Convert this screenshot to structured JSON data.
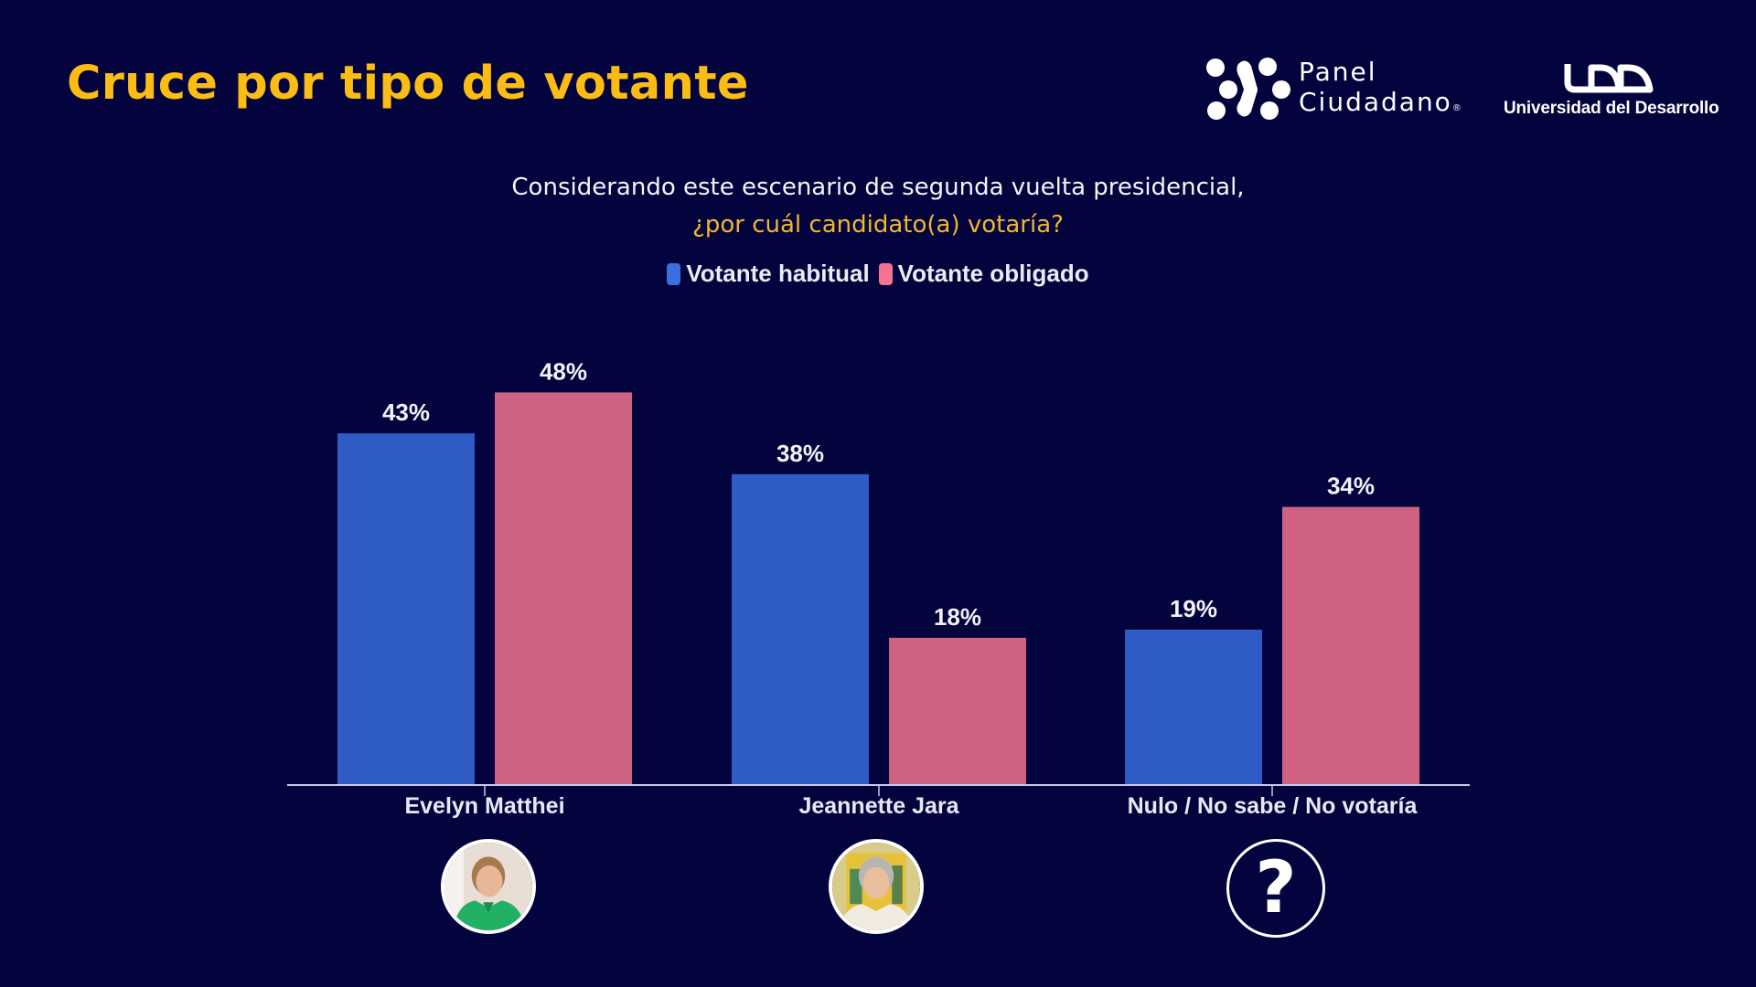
{
  "header": {
    "title": "Cruce por tipo de votante",
    "logos": {
      "panel": {
        "line1": "Panel",
        "line2": "Ciudadano",
        "reg": "®"
      },
      "udd": {
        "mark": "UDD",
        "name": "Universidad del Desarrollo"
      }
    }
  },
  "question": {
    "line1": "Considerando este escenario de segunda vuelta presidencial,",
    "line2": "¿por cuál candidato(a) votaría?"
  },
  "colors": {
    "background": "#03033d",
    "title": "#fbbd14",
    "question_highlight": "#f2b532",
    "habitual": "#2f5bc4",
    "obligado": "#cf6283",
    "text": "#ececf6"
  },
  "chart_data": {
    "type": "bar",
    "title": "¿por cuál candidato(a) votaría?",
    "xlabel": "",
    "ylabel": "",
    "ylim": [
      0,
      100
    ],
    "grid": false,
    "legend": "top-center",
    "categories": [
      "Evelyn Matthei",
      "Jeannette Jara",
      "Nulo / No sabe / No votaría"
    ],
    "series": [
      {
        "name": "Votante habitual",
        "color": "#2f5bc4",
        "values": [
          43,
          38,
          19
        ],
        "labels": [
          "43%",
          "38%",
          "19%"
        ]
      },
      {
        "name": "Votante obligado",
        "color": "#cf6283",
        "values": [
          48,
          18,
          34
        ],
        "labels": [
          "48%",
          "18%",
          "34%"
        ]
      }
    ]
  },
  "category_icons": [
    {
      "name": "evelyn-matthei-photo",
      "alt": "Evelyn Matthei"
    },
    {
      "name": "jeannette-jara-photo",
      "alt": "Jeannette Jara"
    },
    {
      "name": "question-mark-icon",
      "glyph": "?"
    }
  ]
}
